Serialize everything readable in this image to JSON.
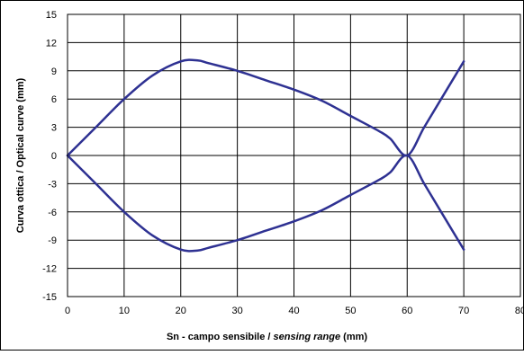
{
  "chart_data": {
    "type": "line",
    "title": "",
    "xlabel": {
      "part1": "Sn - campo sensibile / ",
      "part2": "sensing range",
      "part3": " (mm)"
    },
    "ylabel": "Curva ottica / Optical curve (mm)",
    "xlim": [
      0,
      80
    ],
    "ylim": [
      -15,
      15
    ],
    "x_ticks": [
      "0",
      "10",
      "20",
      "30",
      "40",
      "50",
      "60",
      "70",
      "80"
    ],
    "y_ticks": [
      "15",
      "12",
      "9",
      "6",
      "3",
      "0",
      "-3",
      "-6",
      "-9",
      "-12",
      "-15"
    ],
    "grid": true,
    "series": [
      {
        "color": "#2e3192",
        "points": [
          [
            0,
            0
          ],
          [
            5,
            3
          ],
          [
            10,
            6
          ],
          [
            15,
            8.5
          ],
          [
            20,
            10
          ],
          [
            23,
            10.1
          ],
          [
            25,
            9.8
          ],
          [
            30,
            9
          ],
          [
            35,
            8
          ],
          [
            40,
            7
          ],
          [
            45,
            5.8
          ],
          [
            50,
            4.2
          ],
          [
            55,
            2.6
          ],
          [
            57,
            1.8
          ],
          [
            60,
            0
          ],
          [
            63,
            3
          ],
          [
            66,
            6
          ],
          [
            70,
            10
          ]
        ]
      },
      {
        "color": "#2e3192",
        "points": [
          [
            0,
            0
          ],
          [
            5,
            -3
          ],
          [
            10,
            -6
          ],
          [
            15,
            -8.5
          ],
          [
            20,
            -10
          ],
          [
            23,
            -10.1
          ],
          [
            25,
            -9.8
          ],
          [
            30,
            -9
          ],
          [
            35,
            -8
          ],
          [
            40,
            -7
          ],
          [
            45,
            -5.8
          ],
          [
            50,
            -4.2
          ],
          [
            55,
            -2.6
          ],
          [
            57,
            -1.8
          ],
          [
            60,
            0
          ],
          [
            63,
            -3
          ],
          [
            66,
            -6
          ],
          [
            70,
            -10
          ]
        ]
      }
    ]
  }
}
